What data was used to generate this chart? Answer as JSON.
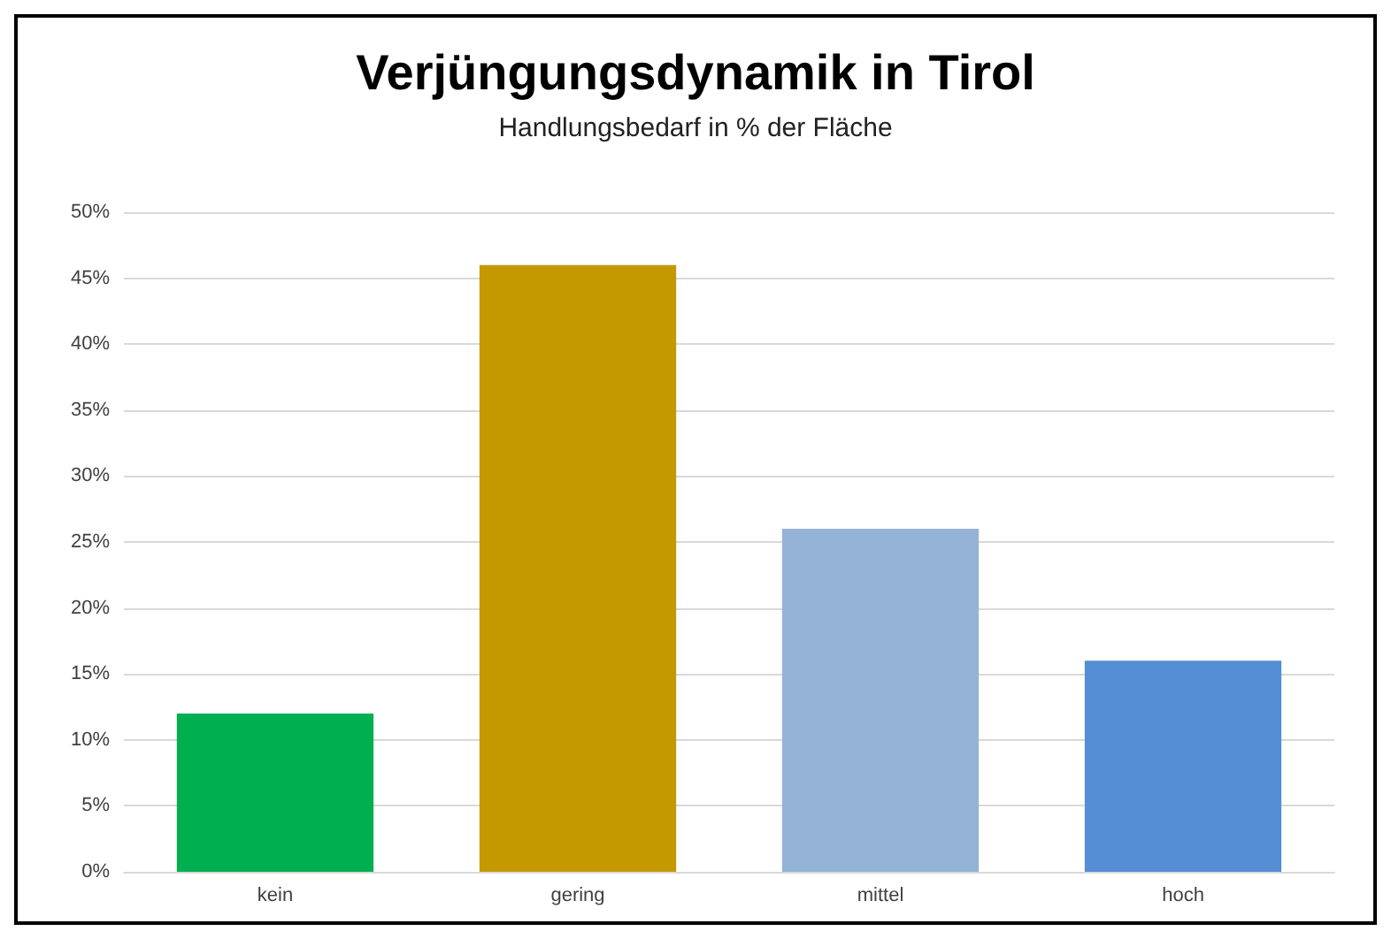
{
  "chart_data": {
    "type": "bar",
    "title": "Verjüngungsdynamik in Tirol",
    "subtitle": "Handlungsbedarf in % der Fläche",
    "categories": [
      "kein",
      "gering",
      "mittel",
      "hoch"
    ],
    "values": [
      12,
      46,
      26,
      16
    ],
    "colors": [
      "#00b050",
      "#c59800",
      "#95b3d7",
      "#558ed5"
    ],
    "ylim": [
      0,
      50
    ],
    "yticks": [
      {
        "value": 0,
        "label": "0%"
      },
      {
        "value": 5,
        "label": "5%"
      },
      {
        "value": 10,
        "label": "10%"
      },
      {
        "value": 15,
        "label": "15%"
      },
      {
        "value": 20,
        "label": "20%"
      },
      {
        "value": 25,
        "label": "25%"
      },
      {
        "value": 30,
        "label": "30%"
      },
      {
        "value": 35,
        "label": "35%"
      },
      {
        "value": 40,
        "label": "40%"
      },
      {
        "value": 45,
        "label": "45%"
      },
      {
        "value": 50,
        "label": "50%"
      }
    ],
    "grid": "y"
  }
}
